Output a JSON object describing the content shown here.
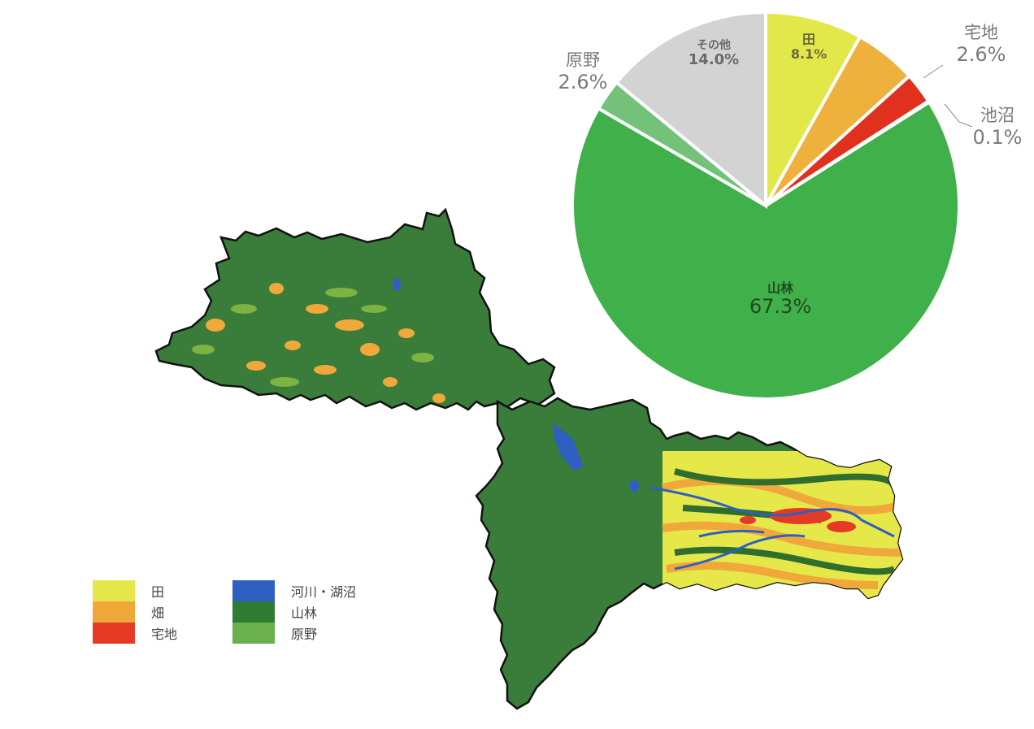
{
  "chart_data": {
    "type": "pie",
    "slices": [
      {
        "label": "田",
        "value": 8.1,
        "color": "#e2e84a"
      },
      {
        "label": "畑",
        "value": 5.2,
        "color": "#eeb13c"
      },
      {
        "label": "宅地",
        "value": 2.6,
        "color": "#e0301e"
      },
      {
        "label": "池沼",
        "value": 0.1,
        "color": "#3d6fb8"
      },
      {
        "label": "山林",
        "value": 67.3,
        "color": "#3fb04a"
      },
      {
        "label": "原野",
        "value": 2.6,
        "color": "#74c27a"
      },
      {
        "label": "その他",
        "value": 14.0,
        "color": "#d3d3d3"
      }
    ],
    "labels": {
      "genya_name": "原野",
      "genya_pct": "2.6%",
      "takuchi_name": "宅地",
      "takuchi_pct": "2.6%",
      "ike_name": "池沼",
      "ike_pct": "0.1%",
      "sonota_name": "その他",
      "sonota_pct": "14.0%",
      "ta_name": "田",
      "ta_pct": "8.1%",
      "sanrin_name": "山林",
      "sanrin_pct": "67.3%"
    }
  },
  "legend": {
    "items": [
      {
        "label": "田",
        "color": "#e6e84a"
      },
      {
        "label": "畑",
        "color": "#f0a83a"
      },
      {
        "label": "宅地",
        "color": "#e53a26"
      },
      {
        "label": "河川・湖沼",
        "color": "#2f5fc0"
      },
      {
        "label": "山林",
        "color": "#2e7d32"
      },
      {
        "label": "原野",
        "color": "#6ab04c"
      }
    ]
  },
  "colors": {
    "forest": "#3a7d3a",
    "forest_dark": "#2f6e2f",
    "paddy": "#e6e84a",
    "field": "#f0a83a",
    "residential": "#e53a26",
    "water": "#2f5fc0",
    "boundary": "#111111"
  }
}
